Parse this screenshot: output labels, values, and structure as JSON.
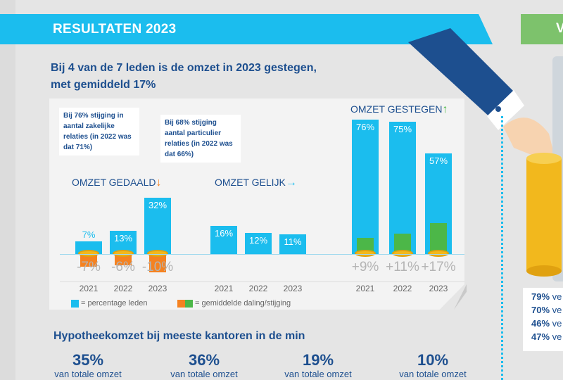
{
  "banner": {
    "title": "RESULTATEN 2023",
    "right_tab": "V"
  },
  "heading": {
    "line1": "Bij 4 van de 7 leden is de omzet in 2023 gestegen,",
    "line2": "met gemiddeld 17%"
  },
  "bubbles": [
    "Bij 76% stijging in aantal zakelijke relaties (in 2022 was dat 71%)",
    "Bij 68% stijging aantal particulier relaties (in 2022 was dat 66%)"
  ],
  "colors": {
    "member": "#1bbdee",
    "decline": "#f58220",
    "increase": "#4cb748",
    "text": "#1d4f8f"
  },
  "chart_data": {
    "type": "bar",
    "groups": [
      {
        "title": "OMZET GEDAALD",
        "arrow": "↓",
        "arrow_color": "#f58220",
        "years": [
          "2021",
          "2022",
          "2023"
        ],
        "members": [
          7,
          13,
          32
        ],
        "members_label": [
          "7%",
          "13%",
          "32%"
        ],
        "change": [
          -7,
          -6,
          -10
        ],
        "change_label": [
          "-7%",
          "-6%",
          "-10%"
        ]
      },
      {
        "title": "OMZET GELIJK",
        "arrow": "→",
        "arrow_color": "#1bbdee",
        "years": [
          "2021",
          "2022",
          "2023"
        ],
        "members": [
          16,
          12,
          11
        ],
        "members_label": [
          "16%",
          "12%",
          "11%"
        ],
        "change": [
          0,
          0,
          0
        ],
        "change_label": [
          "",
          "",
          ""
        ]
      },
      {
        "title": "OMZET GESTEGEN",
        "arrow": "↑",
        "arrow_color": "#4cb748",
        "years": [
          "2021",
          "2022",
          "2023"
        ],
        "members": [
          76,
          75,
          57
        ],
        "members_label": [
          "76%",
          "75%",
          "57%"
        ],
        "change": [
          9,
          11,
          17
        ],
        "change_label": [
          "+9%",
          "+11%",
          "+17%"
        ]
      }
    ],
    "legend": [
      "= percentage leden",
      "= gemiddelde daling/stijging"
    ]
  },
  "section2": {
    "title": "Hypotheekomzet bij meeste kantoren in de min",
    "items": [
      {
        "pct": "35%",
        "sub": "van totale omzet"
      },
      {
        "pct": "36%",
        "sub": "van totale omzet"
      },
      {
        "pct": "19%",
        "sub": "van totale omzet"
      },
      {
        "pct": "10%",
        "sub": "van totale omzet"
      }
    ]
  },
  "right_box": [
    {
      "pct": "79%",
      "text": "ve"
    },
    {
      "pct": "70%",
      "text": "ve"
    },
    {
      "pct": "46%",
      "text": "ve"
    },
    {
      "pct": "47%",
      "text": "ve"
    }
  ]
}
